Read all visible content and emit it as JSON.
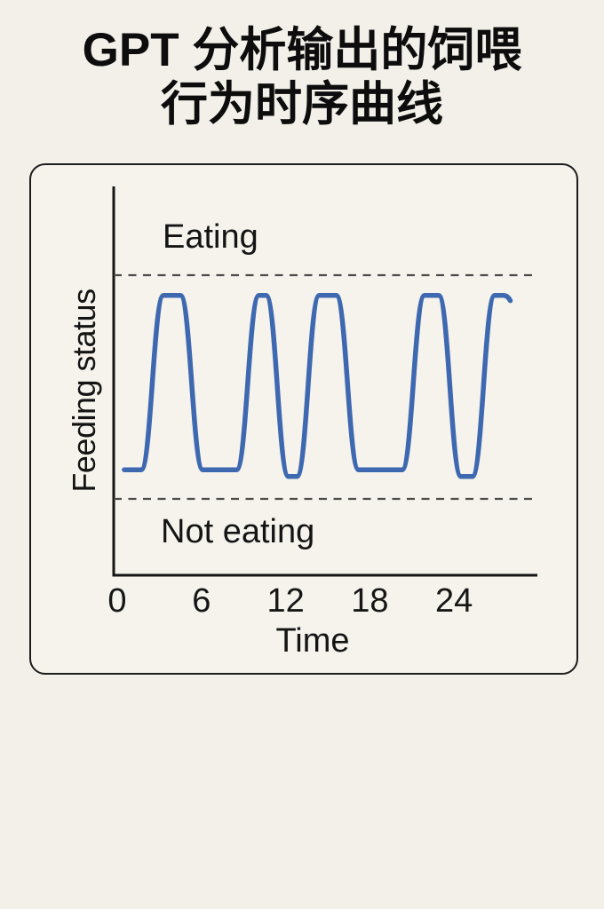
{
  "title": {
    "line1": "GPT 分析输出的饲喂",
    "line2": "行为时序曲线",
    "full": "GPT 分析输出的饲喂行为时序曲线"
  },
  "chart": {
    "eating_label": "Eating",
    "not_eating_label": "Not eating",
    "x_axis_label": "Time",
    "y_axis_label": "Feeding status"
  },
  "chart_data": {
    "type": "line",
    "title": "GPT 分析输出的饲喂行为时序曲线",
    "xlabel": "Time",
    "ylabel": "Feeding status",
    "x_ticks": [
      0,
      6,
      12,
      18,
      24
    ],
    "x_range": [
      0,
      30
    ],
    "grid": false,
    "legend": false,
    "y_levels": [
      {
        "label": "Not eating",
        "value": 0,
        "guide": "dashed"
      },
      {
        "label": "Eating",
        "value": 1,
        "guide": "dashed"
      }
    ],
    "dashed_guides": [
      0,
      1
    ],
    "series": [
      {
        "name": "feeding-status-signal",
        "description": "smoothed binary eating / not-eating waveform",
        "high_value": 0.91,
        "low_value": 0.13,
        "dip_value": 0.1,
        "start_x": 0.5,
        "end_x": 27.7,
        "transition_half_width": 0.8,
        "narrow_gap_threshold": 3,
        "eating_episodes": [
          [
            2.5,
            5.3
          ],
          [
            9.3,
            11.4
          ],
          [
            13.6,
            16.4
          ],
          [
            21.1,
            23.7
          ],
          [
            26.1,
            27.7
          ]
        ]
      }
    ]
  },
  "colors": {
    "background": "#f2f0e9",
    "panel_background": "#f5f3ec",
    "title_text": "#0d0d0d",
    "label_text": "#141414",
    "axis": "#161616",
    "dashed_guide": "#4a4a4a",
    "curve": "#3e68b0"
  }
}
